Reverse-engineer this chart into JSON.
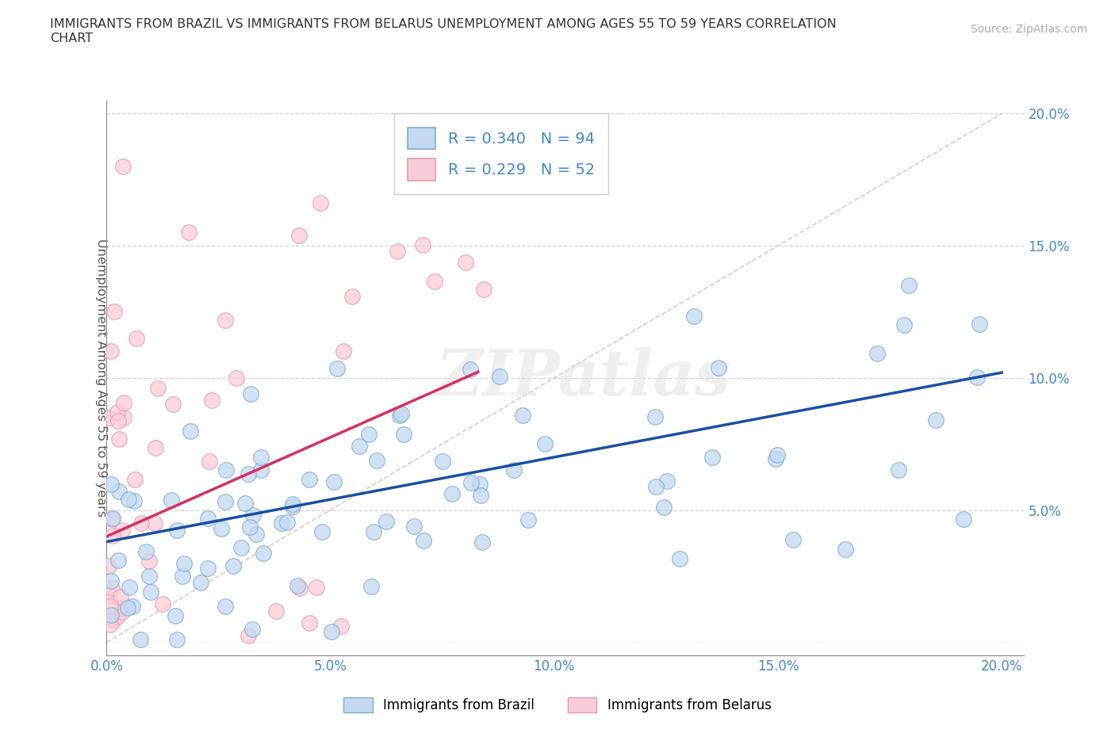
{
  "title": "IMMIGRANTS FROM BRAZIL VS IMMIGRANTS FROM BELARUS UNEMPLOYMENT AMONG AGES 55 TO 59 YEARS CORRELATION\nCHART",
  "source_text": "Source: ZipAtlas.com",
  "ylabel": "Unemployment Among Ages 55 to 59 years",
  "xlim": [
    0.0,
    0.205
  ],
  "ylim": [
    -0.005,
    0.205
  ],
  "xtick_vals": [
    0.0,
    0.05,
    0.1,
    0.15,
    0.2
  ],
  "xtick_labels": [
    "0.0%",
    "5.0%",
    "10.0%",
    "15.0%",
    "20.0%"
  ],
  "ytick_vals": [
    0.05,
    0.1,
    0.15,
    0.2
  ],
  "ytick_labels": [
    "5.0%",
    "10.0%",
    "15.0%",
    "20.0%"
  ],
  "brazil_color": "#c5d9f0",
  "belarus_color": "#f9cdd8",
  "brazil_edge": "#7aaad4",
  "belarus_edge": "#e899b0",
  "brazil_trend_color": "#1a4fa0",
  "belarus_trend_color": "#d63060",
  "diag_color": "#e8c0c0",
  "legend_brazil_label": "Immigrants from Brazil",
  "legend_belarus_label": "Immigrants from Belarus",
  "R_brazil": "0.340",
  "N_brazil": "94",
  "R_belarus": "0.229",
  "N_belarus": "52",
  "watermark_text": "ZIPatlas",
  "background_color": "#ffffff",
  "grid_color": "#d0d0d0",
  "tick_color": "#4488cc",
  "brazil_seed": 12345,
  "belarus_seed": 67890
}
